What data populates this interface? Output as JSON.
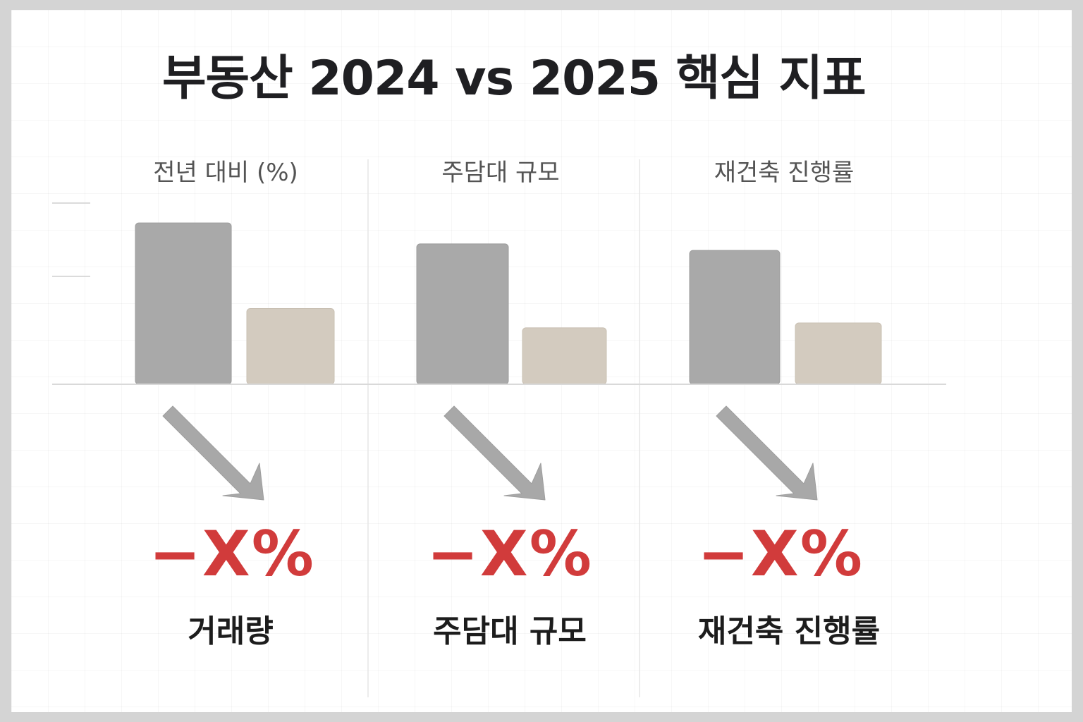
{
  "title": "부동산 2024 vs 2025 핵심 지표",
  "colors": {
    "bar_2024": "#a9a9a9",
    "bar_2025": "#d3cbbf",
    "arrow": "#a8a8a8",
    "change": "#d13b3b",
    "axis": "#d9d9d9",
    "divider": "#e5e5e5"
  },
  "panels": [
    {
      "title": "전년 대비 (%)",
      "change": "−X%",
      "label": "거래량"
    },
    {
      "title": "주담대 규모",
      "change": "−X%",
      "label": "주담대 규모"
    },
    {
      "title": "재건축 진행률",
      "change": "−X%",
      "label": "재건축 진행률"
    }
  ],
  "chart_data": {
    "type": "bar",
    "title": "부동산 2024 vs 2025 핵심 지표",
    "categories": [
      "거래량",
      "주담대 규모",
      "재건축 진행률"
    ],
    "series": [
      {
        "values": [
          100,
          87,
          83
        ]
      },
      {
        "values": [
          47,
          35,
          38
        ]
      }
    ],
    "ylim": [
      0,
      118
    ],
    "grid": true
  }
}
